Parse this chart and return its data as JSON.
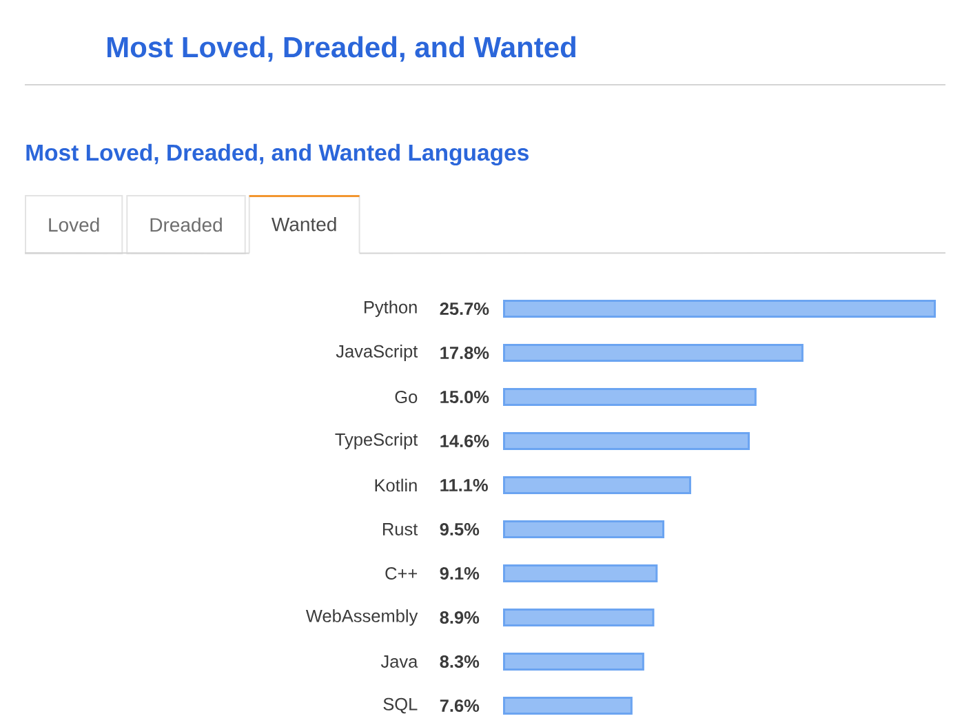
{
  "chart_data": {
    "type": "bar",
    "orientation": "horizontal",
    "title": "Most Loved, Dreaded, and Wanted",
    "subtitle": "Most Loved, Dreaded, and Wanted Languages",
    "annotations": [
      "Loved",
      "Dreaded",
      "Wanted"
    ],
    "categories": [
      "Python",
      "JavaScript",
      "Go",
      "TypeScript",
      "Kotlin",
      "Rust",
      "C++",
      "WebAssembly",
      "Java",
      "SQL"
    ],
    "values": [
      25.7,
      17.8,
      15.0,
      14.6,
      11.1,
      9.5,
      9.1,
      8.9,
      8.3,
      7.6
    ],
    "value_labels": [
      "25.7%",
      "17.8%",
      "15.0%",
      "14.6%",
      "11.1%",
      "9.5%",
      "9.1%",
      "8.9%",
      "8.3%",
      "7.6%"
    ],
    "color": "#95bef5",
    "tick_labels": "y"
  }
}
